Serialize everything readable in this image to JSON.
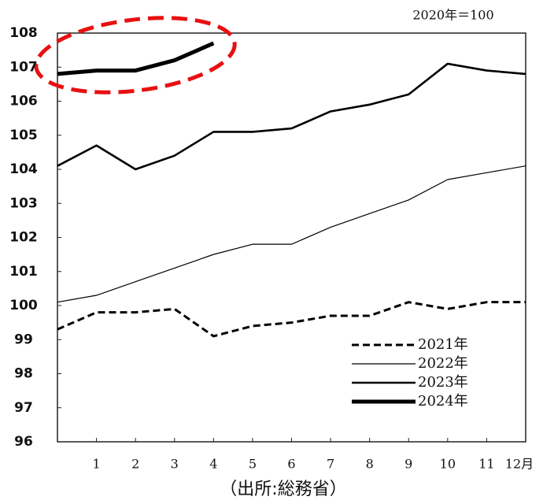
{
  "chart_data": {
    "type": "line",
    "annotation": "2020年＝100",
    "caption": "（出所:総務省）",
    "x": [
      0,
      1,
      2,
      3,
      4,
      5,
      6,
      7,
      8,
      9,
      10,
      11,
      12
    ],
    "xlim": [
      0,
      12
    ],
    "xticks": [
      1,
      2,
      3,
      4,
      5,
      6,
      7,
      8,
      9,
      10,
      11,
      {
        "value": 12,
        "label": "12月"
      }
    ],
    "ylim": [
      96,
      108
    ],
    "yticks": [
      96,
      97,
      98,
      99,
      100,
      101,
      102,
      103,
      104,
      105,
      106,
      107,
      108
    ],
    "series": [
      {
        "name": "2021年",
        "color": "#000000",
        "line_width": 3,
        "dashed": true,
        "values": [
          99.3,
          99.8,
          99.8,
          99.9,
          99.1,
          99.4,
          99.5,
          99.7,
          99.7,
          100.1,
          99.9,
          100.1,
          100.1
        ]
      },
      {
        "name": "2022年",
        "color": "#000000",
        "line_width": 1.2,
        "dashed": false,
        "values": [
          100.1,
          100.3,
          100.7,
          101.1,
          101.5,
          101.8,
          101.8,
          102.3,
          102.7,
          103.1,
          103.7,
          103.9,
          104.1
        ]
      },
      {
        "name": "2023年",
        "color": "#000000",
        "line_width": 2.6,
        "dashed": false,
        "values": [
          104.1,
          104.7,
          104.0,
          104.4,
          105.1,
          105.1,
          105.2,
          105.7,
          105.9,
          106.2,
          107.1,
          106.9,
          106.8
        ]
      },
      {
        "name": "2024年",
        "color": "#000000",
        "line_width": 5,
        "dashed": false,
        "values": [
          106.8,
          106.9,
          106.9,
          107.2,
          107.7,
          null,
          null,
          null,
          null,
          null,
          null,
          null,
          null
        ]
      }
    ]
  }
}
